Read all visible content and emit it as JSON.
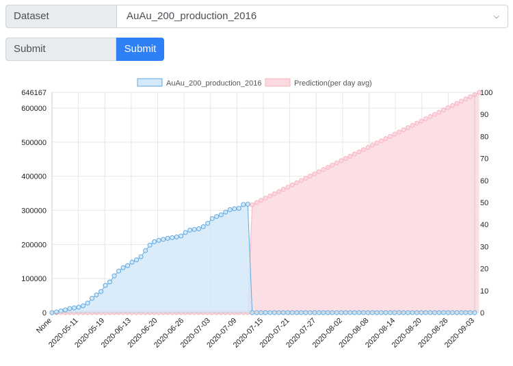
{
  "form": {
    "dataset_label": "Dataset",
    "dataset_value": "AuAu_200_production_2016",
    "submit_label": "Submit",
    "submit_button": "Submit"
  },
  "colors": {
    "series1_fill": "#d3e8f8",
    "series1_line": "#5fa8e0",
    "series2_fill": "#fbd9df",
    "series2_line": "#f6b6c2",
    "button": "#2f80f7"
  },
  "chart_data": {
    "type": "line",
    "legend": [
      "AuAu_200_production_2016",
      "Prediction(per day avg)"
    ],
    "legend_position": "top",
    "grid": true,
    "y_left": {
      "ticks": [
        "0",
        "100000",
        "200000",
        "300000",
        "400000",
        "500000",
        "600000",
        "646167"
      ],
      "range": [
        0,
        646167
      ]
    },
    "y_right": {
      "ticks": [
        "0",
        "10",
        "20",
        "30",
        "40",
        "50",
        "60",
        "70",
        "80",
        "90",
        "100"
      ],
      "range": [
        0,
        100
      ]
    },
    "x_tick_labels": [
      "None",
      "2020-05-11",
      "2020-05-19",
      "2020-06-13",
      "2020-06-20",
      "2020-06-26",
      "2020-07-03",
      "2020-07-09",
      "2020-07-15",
      "2020-07-21",
      "2020-07-27",
      "2020-08-02",
      "2020-08-08",
      "2020-08-14",
      "2020-08-20",
      "2020-08-26",
      "2020-09-03"
    ],
    "series": [
      {
        "name": "AuAu_200_production_2016",
        "axis": "left",
        "values": [
          0,
          2000,
          5000,
          8000,
          12000,
          14000,
          16000,
          20000,
          28000,
          42000,
          52000,
          62000,
          80000,
          90000,
          108000,
          122000,
          132000,
          138000,
          148000,
          155000,
          164000,
          182000,
          198000,
          208000,
          212000,
          215000,
          218000,
          220000,
          222000,
          225000,
          235000,
          242000,
          244000,
          246000,
          252000,
          262000,
          276000,
          282000,
          287000,
          295000,
          302000,
          305000,
          306000,
          317000,
          318000,
          0,
          0,
          0,
          0,
          0,
          0,
          0,
          0,
          0,
          0,
          0,
          0,
          0,
          0,
          0,
          0,
          0,
          0,
          0,
          0,
          0,
          0,
          0,
          0,
          0,
          0,
          0,
          0,
          0,
          0,
          0,
          0,
          0,
          0,
          0,
          0,
          0,
          0,
          0,
          0,
          0,
          0,
          0,
          0,
          0,
          0,
          0,
          0,
          0,
          0,
          0
        ]
      },
      {
        "name": "Prediction(per day avg)",
        "axis": "right",
        "values": [
          0,
          0,
          0,
          0,
          0,
          0,
          0,
          0,
          0,
          0,
          0,
          0,
          0,
          0,
          0,
          0,
          0,
          0,
          0,
          0,
          0,
          0,
          0,
          0,
          0,
          0,
          0,
          0,
          0,
          0,
          0,
          0,
          0,
          0,
          0,
          0,
          0,
          0,
          0,
          0,
          0,
          0,
          0,
          0,
          0,
          49.0,
          50.0,
          51.0,
          52.0,
          53.0,
          54.0,
          55.0,
          56.0,
          57.0,
          58.0,
          59.0,
          60.0,
          61.0,
          62.0,
          63.0,
          64.0,
          65.0,
          66.0,
          67.0,
          68.0,
          69.0,
          70.0,
          71.0,
          72.0,
          73.0,
          74.0,
          75.0,
          76.0,
          77.0,
          78.0,
          79.0,
          80.0,
          81.0,
          82.0,
          83.0,
          84.0,
          85.0,
          86.0,
          87.0,
          88.0,
          89.0,
          90.0,
          91.0,
          92.0,
          93.0,
          94.0,
          95.0,
          96.0,
          97.0,
          98.0,
          99.0,
          100.0
        ]
      }
    ]
  }
}
